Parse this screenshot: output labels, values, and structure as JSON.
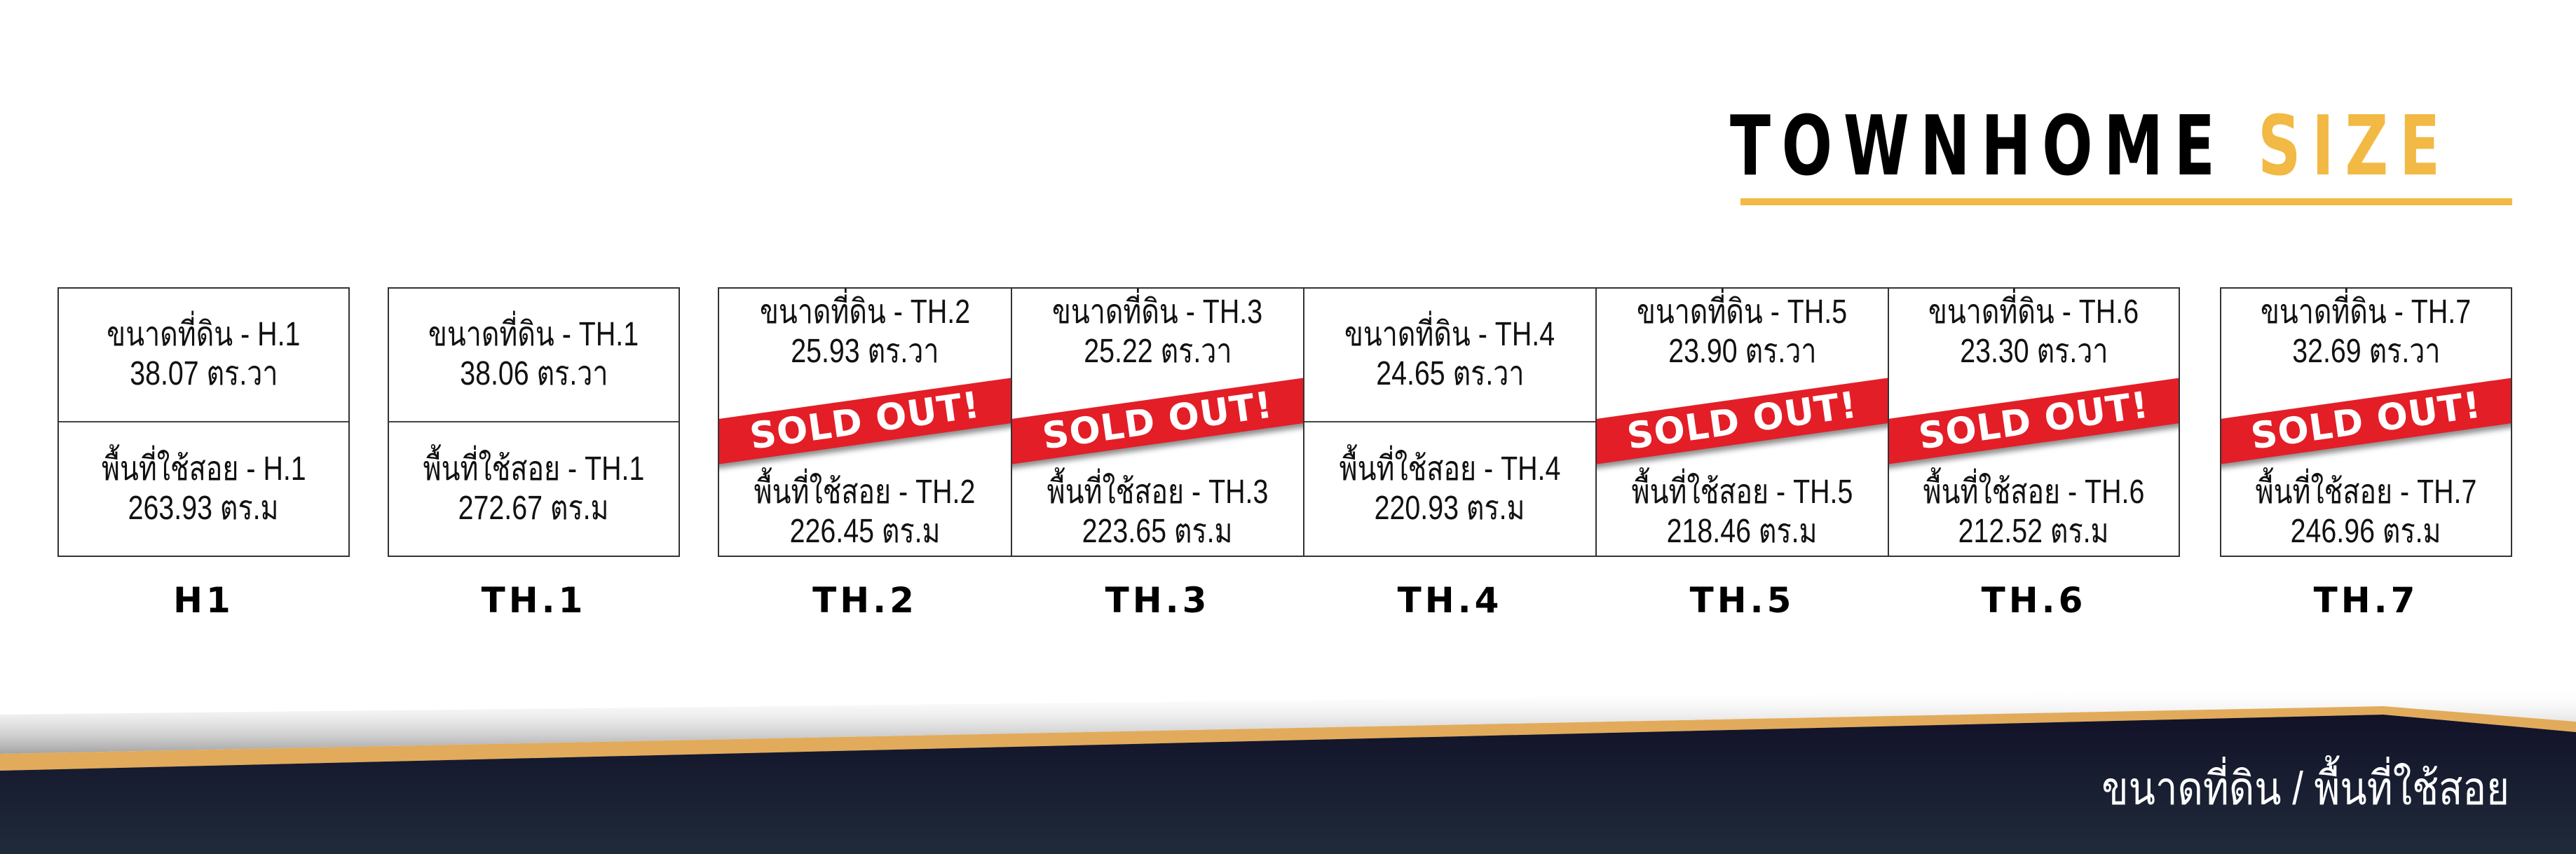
{
  "header": {
    "title_main": "TOWNHOME",
    "title_accent": "SIZE",
    "accent_color": "#f2b944"
  },
  "units": [
    {
      "label": "H1",
      "land": "ขนาดที่ดิน - H.1",
      "land_value": "38.07 ตร.วา",
      "usable": "พื้นที่ใช้สอย - H.1",
      "usable_value": "263.93 ตร.ม",
      "sold_out": false
    },
    {
      "label": "TH.1",
      "land": "ขนาดที่ดิน - TH.1",
      "land_value": "38.06 ตร.วา",
      "usable": "พื้นที่ใช้สอย - TH.1",
      "usable_value": "272.67 ตร.ม",
      "sold_out": false
    },
    {
      "label": "TH.2",
      "land": "ขนาดที่ดิน - TH.2",
      "land_value": "25.93 ตร.วา",
      "usable": "พื้นที่ใช้สอย - TH.2",
      "usable_value": "226.45 ตร.ม",
      "sold_out": true
    },
    {
      "label": "TH.3",
      "land": "ขนาดที่ดิน - TH.3",
      "land_value": "25.22 ตร.วา",
      "usable": "พื้นที่ใช้สอย - TH.3",
      "usable_value": "223.65 ตร.ม",
      "sold_out": true
    },
    {
      "label": "TH.4",
      "land": "ขนาดที่ดิน - TH.4",
      "land_value": "24.65 ตร.วา",
      "usable": "พื้นที่ใช้สอย - TH.4",
      "usable_value": "220.93 ตร.ม",
      "sold_out": false
    },
    {
      "label": "TH.5",
      "land": "ขนาดที่ดิน - TH.5",
      "land_value": "23.90 ตร.วา",
      "usable": "พื้นที่ใช้สอย - TH.5",
      "usable_value": "218.46 ตร.ม",
      "sold_out": true
    },
    {
      "label": "TH.6",
      "land": "ขนาดที่ดิน - TH.6",
      "land_value": "23.30 ตร.วา",
      "usable": "พื้นที่ใช้สอย - TH.6",
      "usable_value": "212.52 ตร.ม",
      "sold_out": true
    },
    {
      "label": "TH.7",
      "land": "ขนาดที่ดิน - TH.7",
      "land_value": "32.69 ตร.วา",
      "usable": "พื้นที่ใช้สอย - TH.7",
      "usable_value": "246.96 ตร.ม",
      "sold_out": true
    }
  ],
  "sold_out_label": "SOLD OUT!",
  "sold_out_color": "#e31e27",
  "footer": {
    "caption": "ขนาดที่ดิน / พื้นที่ใช้สอย",
    "background_color": "#13132a",
    "stripe_color": "#e2ab5b"
  }
}
